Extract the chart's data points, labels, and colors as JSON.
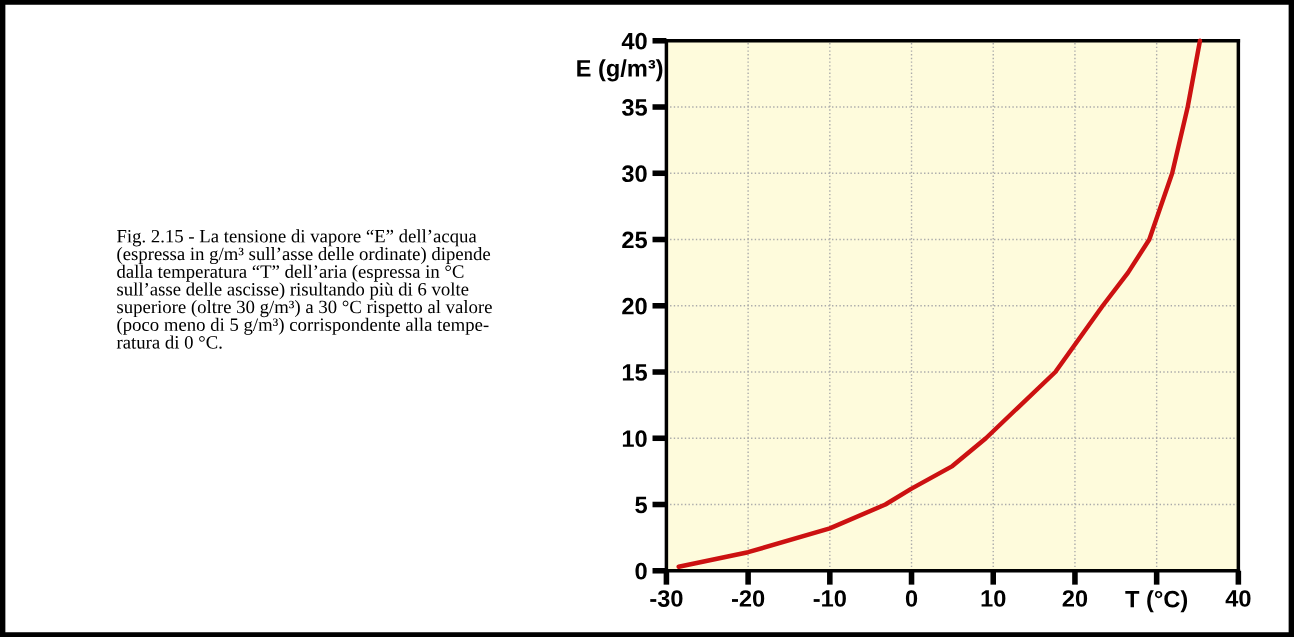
{
  "chart_data": {
    "type": "line",
    "x": [
      -28.5,
      -20,
      -10,
      -3.2,
      0,
      5,
      9.1,
      13,
      17.6,
      23.4,
      26.5,
      29.1,
      31.9,
      33.8,
      35.3
    ],
    "series": [
      {
        "color": "#cc1111",
        "values": [
          0.3,
          1.4,
          3.2,
          5,
          6.2,
          7.9,
          10,
          12.3,
          15,
          20,
          22.5,
          25,
          30,
          35,
          40
        ]
      }
    ],
    "xlabel": "T (°C)",
    "ylabel": "E (g/m³)",
    "xlim": [
      -30,
      40
    ],
    "ylim": [
      0,
      40
    ],
    "xticks": [
      -30,
      -20,
      -10,
      0,
      10,
      20,
      {
        "value": 30,
        "label": null
      },
      40
    ],
    "yticks": [
      0,
      5,
      10,
      15,
      20,
      25,
      30,
      35,
      40
    ],
    "grid": true,
    "line_style": "solid",
    "marker": "none",
    "annotations": [
      "Fig. 2.15 - La tensione di vapore “E” dell’acqua\n(espressa in g/m³ sull’asse delle ordinate) dipende\ndalla temperatura “T” dell’aria (espressa in °C\nsull’asse delle ascisse) risultando più di 6 volte\nsuperiore (oltre 30 g/m³) a 30 °C rispetto al valore\n(poco meno di 5 g/m³) corrispondente alla tempe-\nratura di 0 °C."
    ]
  }
}
